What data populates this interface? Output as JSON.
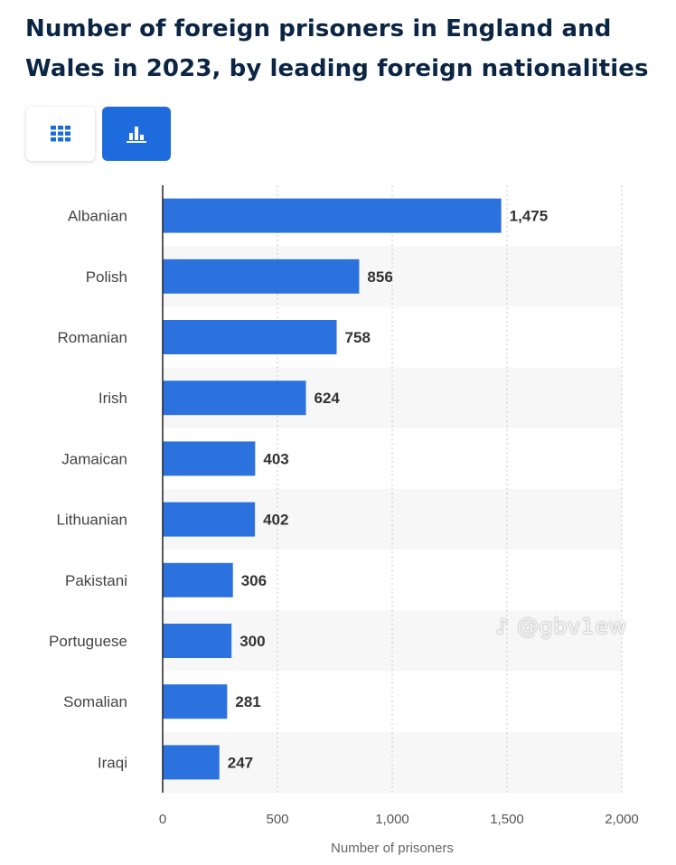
{
  "title": "Number of foreign prisoners in England and Wales in 2023, by leading foreign nationalities",
  "toolbar": {
    "table_icon": "table-grid-icon",
    "chart_icon": "bar-chart-icon",
    "active": "chart",
    "accent_color": "#1d6bdd"
  },
  "watermark": "@gbv1ew",
  "chart_data": {
    "type": "bar",
    "orientation": "horizontal",
    "categories": [
      "Albanian",
      "Polish",
      "Romanian",
      "Irish",
      "Jamaican",
      "Lithuanian",
      "Pakistani",
      "Portuguese",
      "Somalian",
      "Iraqi"
    ],
    "values": [
      1475,
      856,
      758,
      624,
      403,
      402,
      306,
      300,
      281,
      247
    ],
    "value_labels": [
      "1,475",
      "856",
      "758",
      "624",
      "403",
      "402",
      "306",
      "300",
      "281",
      "247"
    ],
    "xlabel": "Number of prisoners",
    "ylabel": "",
    "xlim": [
      0,
      2000
    ],
    "ticks": [
      0,
      500,
      1000,
      1500,
      2000
    ],
    "tick_labels": [
      "0",
      "500",
      "1,000",
      "1,500",
      "2,000"
    ],
    "grid": "vertical dotted",
    "bar_color": "#2b72de",
    "stripe_color": "#f7f7f7"
  }
}
